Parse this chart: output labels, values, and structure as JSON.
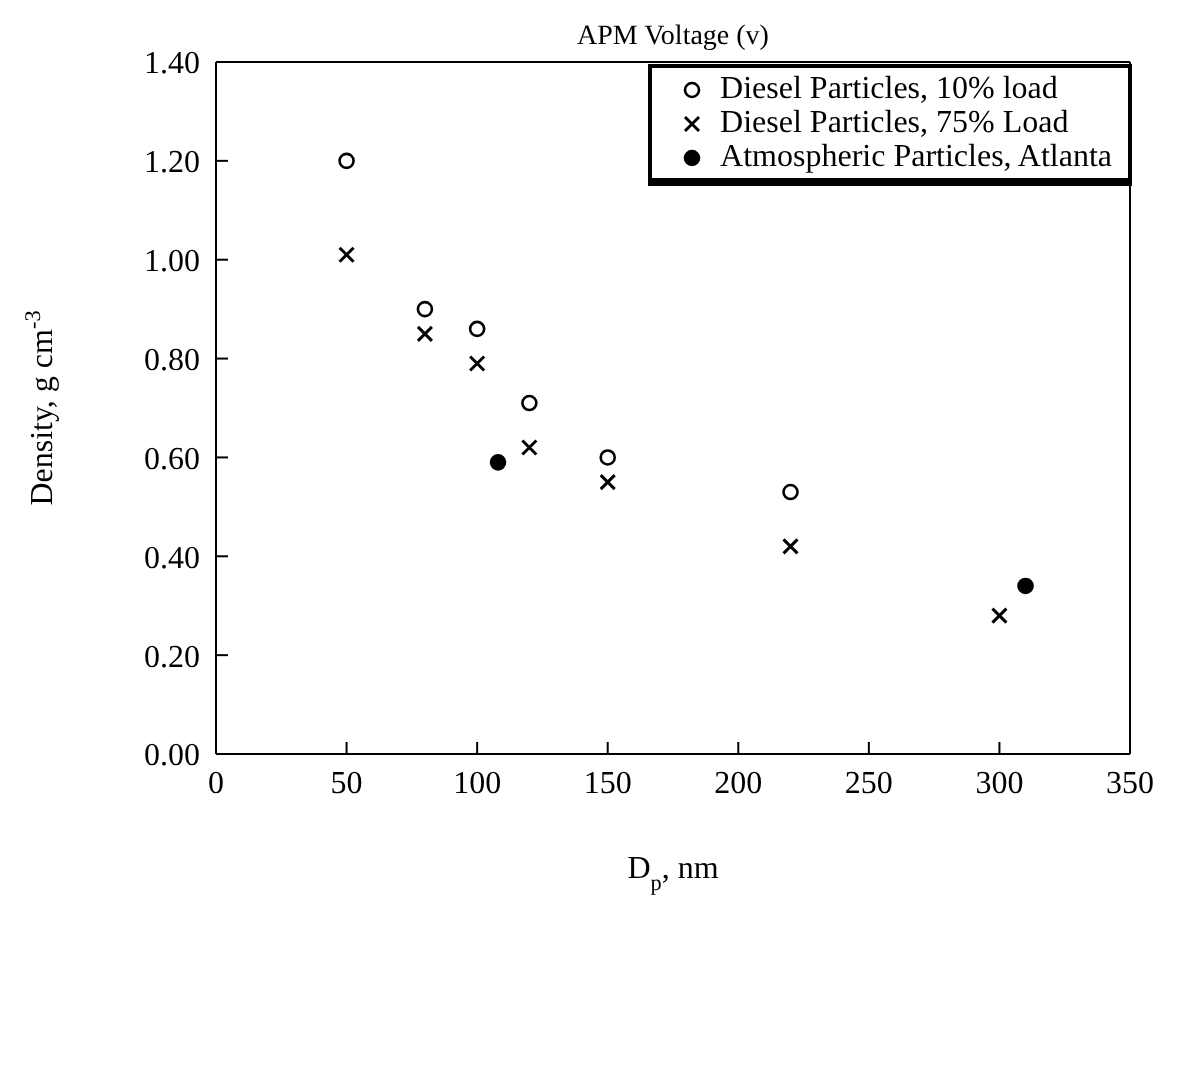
{
  "chart_data": {
    "type": "scatter",
    "title": "APM Voltage (v)",
    "xlabel": "D$_{p}$, nm",
    "ylabel": "Density, g cm$^{-3}$",
    "xlim": [
      0,
      350
    ],
    "xticks": [
      0,
      50,
      100,
      150,
      200,
      250,
      300,
      350
    ],
    "ylim": [
      0,
      1.4
    ],
    "yticks": [
      {
        "value": 0,
        "label": "0.00"
      },
      {
        "value": 0.2,
        "label": "0.20"
      },
      {
        "value": 0.4,
        "label": "0.40"
      },
      {
        "value": 0.6,
        "label": "0.60"
      },
      {
        "value": 0.8,
        "label": "0.80"
      },
      {
        "value": 1,
        "label": "1.00"
      },
      {
        "value": 1.2,
        "label": "1.20"
      },
      {
        "value": 1.4,
        "label": "1.40"
      }
    ],
    "grid": false,
    "legend": "top right",
    "series": [
      {
        "name": "Diesel Particles, 10% load",
        "color": "#ffffff",
        "marker": "circle",
        "x": [
          50,
          80,
          100,
          120,
          150,
          220
        ],
        "values": [
          1.2,
          0.9,
          0.86,
          0.71,
          0.6,
          0.53
        ]
      },
      {
        "name": "Diesel Particles, 75% Load",
        "color": "#000000",
        "marker": "cross",
        "x": [
          50,
          80,
          100,
          120,
          150,
          220,
          300
        ],
        "values": [
          1.01,
          0.85,
          0.79,
          0.62,
          0.55,
          0.42,
          0.28
        ]
      },
      {
        "name": "Atmospheric Particles, Atlanta",
        "color": "#000000",
        "marker": "circle",
        "x": [
          108,
          310
        ],
        "values": [
          0.59,
          0.34
        ]
      }
    ]
  }
}
